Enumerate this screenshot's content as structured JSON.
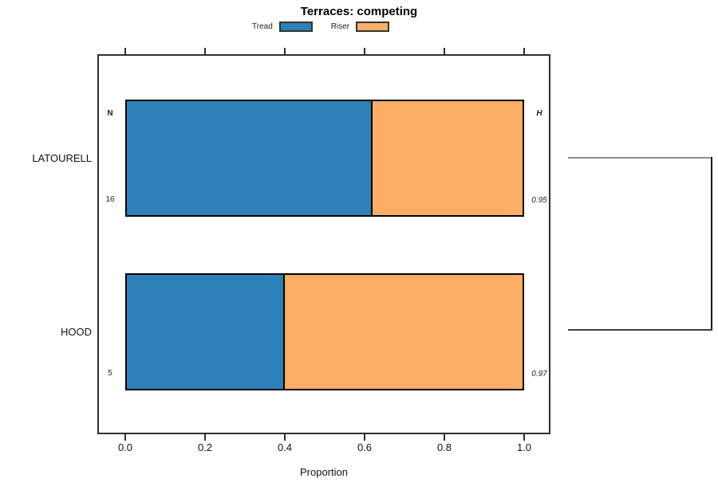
{
  "title": "Terraces: competing",
  "legend": [
    {
      "label": "Tread",
      "color": "#2E80B8"
    },
    {
      "label": "Riser",
      "color": "#FCAD66"
    }
  ],
  "chart_data": {
    "type": "bar",
    "orientation": "horizontal",
    "stacked": true,
    "title": "Terraces: competing",
    "xlabel": "Proportion",
    "xlim": [
      0,
      1
    ],
    "x_ticks": [
      0.0,
      0.2,
      0.4,
      0.6,
      0.8,
      1.0
    ],
    "x_tick_labels": [
      "0.0",
      "0.2",
      "0.4",
      "0.6",
      "0.8",
      "1.0"
    ],
    "categories": [
      "LATOURELL",
      "HOOD"
    ],
    "series": [
      {
        "name": "Tread",
        "color": "#2E80B8",
        "values": [
          0.62,
          0.4
        ]
      },
      {
        "name": "Riser",
        "color": "#FCAD66",
        "values": [
          0.38,
          0.6
        ]
      }
    ],
    "annotations": {
      "n_header": "N",
      "h_header": "H",
      "n_values": [
        "16",
        "5"
      ],
      "h_values": [
        "0.95",
        "0.97"
      ]
    },
    "legend_position": "top-center",
    "grid": false,
    "axis_ticks_top_and_bottom": true,
    "dendrogram": {
      "present": true,
      "joins": [
        "LATOURELL",
        "HOOD"
      ]
    }
  }
}
